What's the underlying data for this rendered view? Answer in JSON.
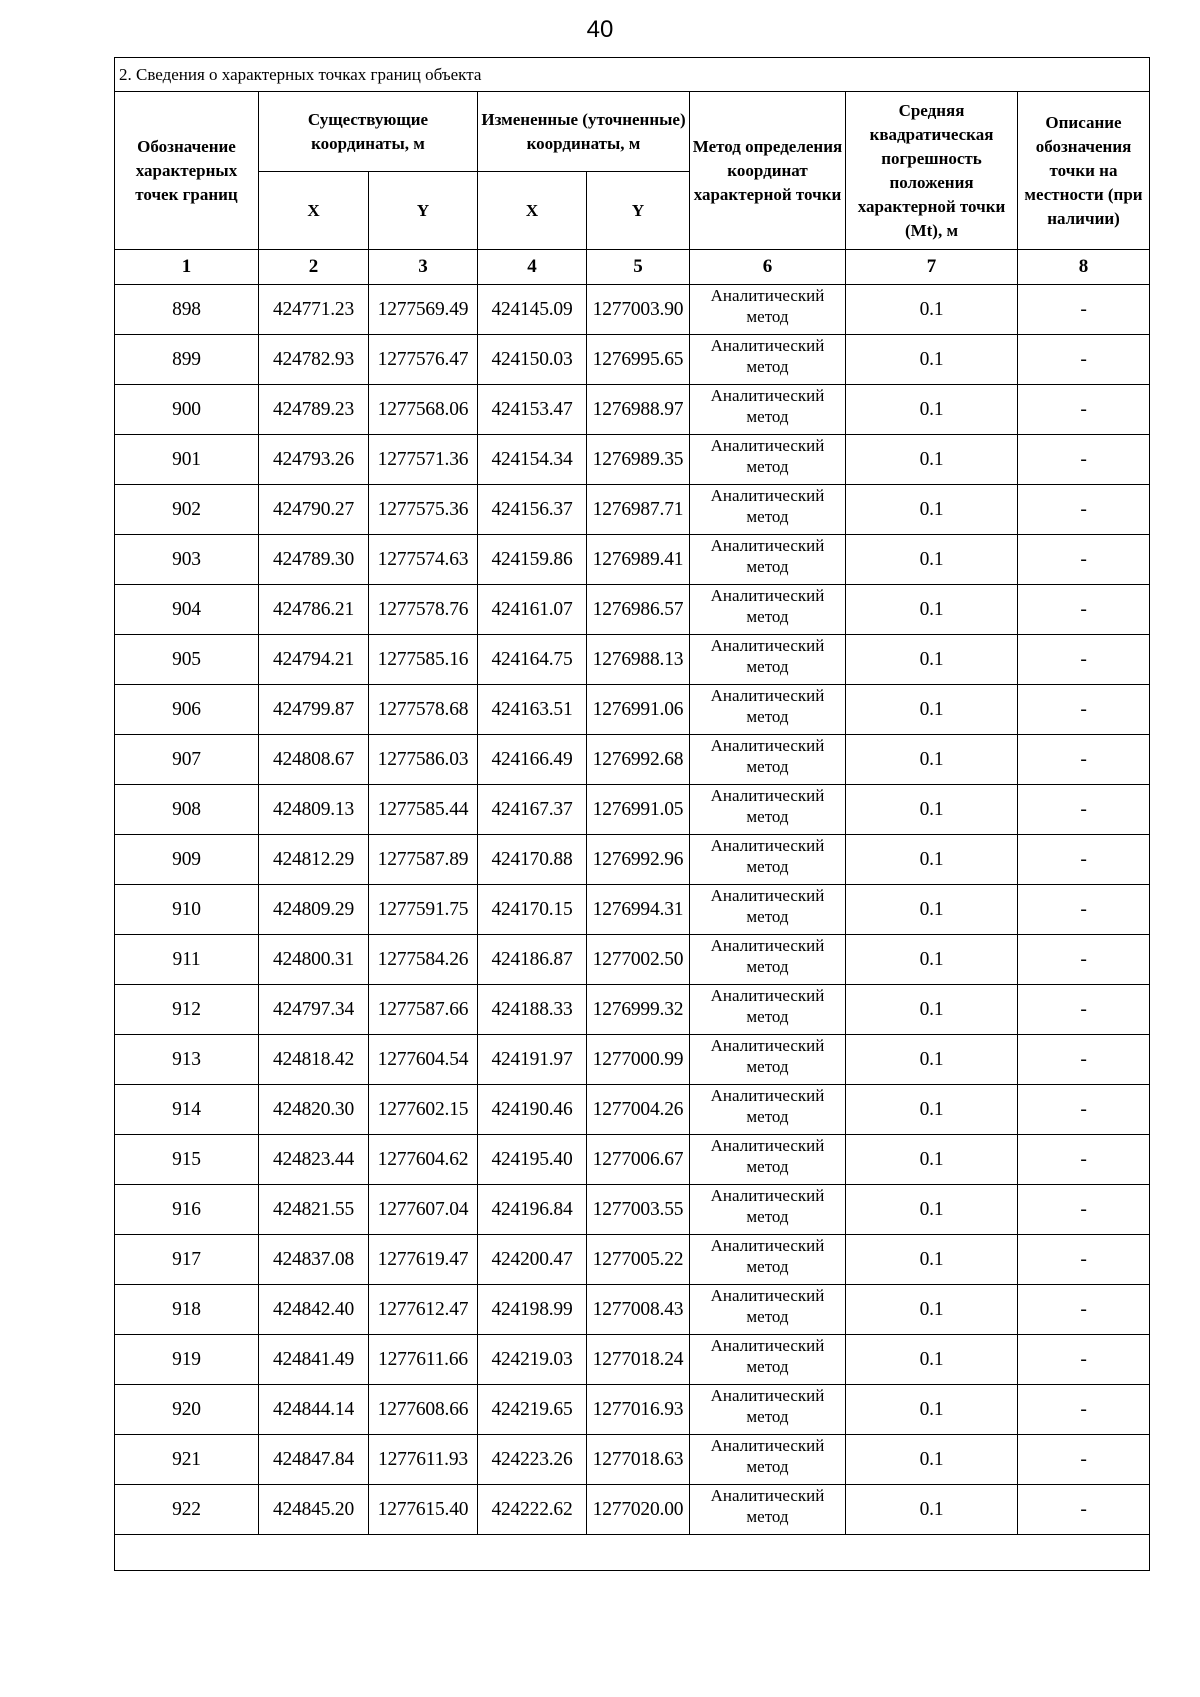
{
  "page_number": "40",
  "table": {
    "title": "2. Сведения о характерных точках границ объекта",
    "headers": {
      "point": "Обозначение характерных точек границ",
      "existing": "Существующие координаты, м",
      "changed": "Измененные (уточненные) координаты, м",
      "x": "X",
      "y": "Y",
      "method": "Метод определения координат характерной точки",
      "error": "Средняя квадратическая погрешность положения характерной точки (Mt), м",
      "description": "Описание обозначения точки на местности (при наличии)"
    },
    "column_numbers": [
      "1",
      "2",
      "3",
      "4",
      "5",
      "6",
      "7",
      "8"
    ],
    "rows": [
      [
        "898",
        "424771.23",
        "1277569.49",
        "424145.09",
        "1277003.90",
        "Аналитический метод",
        "0.1",
        "-"
      ],
      [
        "899",
        "424782.93",
        "1277576.47",
        "424150.03",
        "1276995.65",
        "Аналитический метод",
        "0.1",
        "-"
      ],
      [
        "900",
        "424789.23",
        "1277568.06",
        "424153.47",
        "1276988.97",
        "Аналитический метод",
        "0.1",
        "-"
      ],
      [
        "901",
        "424793.26",
        "1277571.36",
        "424154.34",
        "1276989.35",
        "Аналитический метод",
        "0.1",
        "-"
      ],
      [
        "902",
        "424790.27",
        "1277575.36",
        "424156.37",
        "1276987.71",
        "Аналитический метод",
        "0.1",
        "-"
      ],
      [
        "903",
        "424789.30",
        "1277574.63",
        "424159.86",
        "1276989.41",
        "Аналитический метод",
        "0.1",
        "-"
      ],
      [
        "904",
        "424786.21",
        "1277578.76",
        "424161.07",
        "1276986.57",
        "Аналитический метод",
        "0.1",
        "-"
      ],
      [
        "905",
        "424794.21",
        "1277585.16",
        "424164.75",
        "1276988.13",
        "Аналитический метод",
        "0.1",
        "-"
      ],
      [
        "906",
        "424799.87",
        "1277578.68",
        "424163.51",
        "1276991.06",
        "Аналитический метод",
        "0.1",
        "-"
      ],
      [
        "907",
        "424808.67",
        "1277586.03",
        "424166.49",
        "1276992.68",
        "Аналитический метод",
        "0.1",
        "-"
      ],
      [
        "908",
        "424809.13",
        "1277585.44",
        "424167.37",
        "1276991.05",
        "Аналитический метод",
        "0.1",
        "-"
      ],
      [
        "909",
        "424812.29",
        "1277587.89",
        "424170.88",
        "1276992.96",
        "Аналитический метод",
        "0.1",
        "-"
      ],
      [
        "910",
        "424809.29",
        "1277591.75",
        "424170.15",
        "1276994.31",
        "Аналитический метод",
        "0.1",
        "-"
      ],
      [
        "911",
        "424800.31",
        "1277584.26",
        "424186.87",
        "1277002.50",
        "Аналитический метод",
        "0.1",
        "-"
      ],
      [
        "912",
        "424797.34",
        "1277587.66",
        "424188.33",
        "1276999.32",
        "Аналитический метод",
        "0.1",
        "-"
      ],
      [
        "913",
        "424818.42",
        "1277604.54",
        "424191.97",
        "1277000.99",
        "Аналитический метод",
        "0.1",
        "-"
      ],
      [
        "914",
        "424820.30",
        "1277602.15",
        "424190.46",
        "1277004.26",
        "Аналитический метод",
        "0.1",
        "-"
      ],
      [
        "915",
        "424823.44",
        "1277604.62",
        "424195.40",
        "1277006.67",
        "Аналитический метод",
        "0.1",
        "-"
      ],
      [
        "916",
        "424821.55",
        "1277607.04",
        "424196.84",
        "1277003.55",
        "Аналитический метод",
        "0.1",
        "-"
      ],
      [
        "917",
        "424837.08",
        "1277619.47",
        "424200.47",
        "1277005.22",
        "Аналитический метод",
        "0.1",
        "-"
      ],
      [
        "918",
        "424842.40",
        "1277612.47",
        "424198.99",
        "1277008.43",
        "Аналитический метод",
        "0.1",
        "-"
      ],
      [
        "919",
        "424841.49",
        "1277611.66",
        "424219.03",
        "1277018.24",
        "Аналитический метод",
        "0.1",
        "-"
      ],
      [
        "920",
        "424844.14",
        "1277608.66",
        "424219.65",
        "1277016.93",
        "Аналитический метод",
        "0.1",
        "-"
      ],
      [
        "921",
        "424847.84",
        "1277611.93",
        "424223.26",
        "1277018.63",
        "Аналитический метод",
        "0.1",
        "-"
      ],
      [
        "922",
        "424845.20",
        "1277615.40",
        "424222.62",
        "1277020.00",
        "Аналитический метод",
        "0.1",
        "-"
      ]
    ]
  }
}
